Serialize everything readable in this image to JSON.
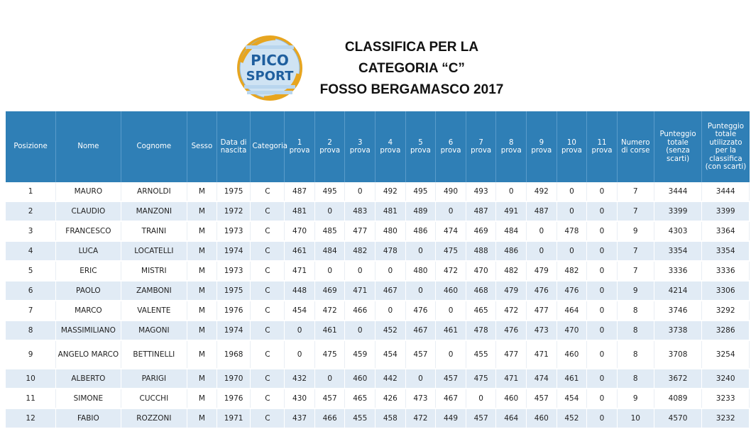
{
  "header": {
    "title_lines": [
      "CLASSIFICA PER LA",
      "CATEGORIA “C”",
      "FOSSO BERGAMASCO 2017"
    ],
    "logo_text": [
      "PICO",
      "SPORT"
    ]
  },
  "table": {
    "columns": [
      "Posizione",
      "Nome",
      "Cognome",
      "Sesso",
      "Data di nascita",
      "Categoria",
      "1 prova",
      "2 prova",
      "3 prova",
      "4 prova",
      "5 prova",
      "6 prova",
      "7 prova",
      "8 prova",
      "9 prova",
      "10 prova",
      "11 prova",
      "Numero di corse",
      "Punteggio totale (senza scarti)",
      "Punteggio totale utilizzato per la classifica (con scarti)"
    ],
    "rows": [
      [
        "1",
        "MAURO",
        "ARNOLDI",
        "M",
        "1975",
        "C",
        "487",
        "495",
        "0",
        "492",
        "495",
        "490",
        "493",
        "0",
        "492",
        "0",
        "0",
        "7",
        "3444",
        "3444"
      ],
      [
        "2",
        "CLAUDIO",
        "MANZONI",
        "M",
        "1972",
        "C",
        "481",
        "0",
        "483",
        "481",
        "489",
        "0",
        "487",
        "491",
        "487",
        "0",
        "0",
        "7",
        "3399",
        "3399"
      ],
      [
        "3",
        "FRANCESCO",
        "TRAINI",
        "M",
        "1973",
        "C",
        "470",
        "485",
        "477",
        "480",
        "486",
        "474",
        "469",
        "484",
        "0",
        "478",
        "0",
        "9",
        "4303",
        "3364"
      ],
      [
        "4",
        "LUCA",
        "LOCATELLI",
        "M",
        "1974",
        "C",
        "461",
        "484",
        "482",
        "478",
        "0",
        "475",
        "488",
        "486",
        "0",
        "0",
        "0",
        "7",
        "3354",
        "3354"
      ],
      [
        "5",
        "ERIC",
        "MISTRI",
        "M",
        "1973",
        "C",
        "471",
        "0",
        "0",
        "0",
        "480",
        "472",
        "470",
        "482",
        "479",
        "482",
        "0",
        "7",
        "3336",
        "3336"
      ],
      [
        "6",
        "PAOLO",
        "ZAMBONI",
        "M",
        "1975",
        "C",
        "448",
        "469",
        "471",
        "467",
        "0",
        "460",
        "468",
        "479",
        "476",
        "476",
        "0",
        "9",
        "4214",
        "3306"
      ],
      [
        "7",
        "MARCO",
        "VALENTE",
        "M",
        "1976",
        "C",
        "454",
        "472",
        "466",
        "0",
        "476",
        "0",
        "465",
        "472",
        "477",
        "464",
        "0",
        "8",
        "3746",
        "3292"
      ],
      [
        "8",
        "MASSIMILIANO",
        "MAGONI",
        "M",
        "1974",
        "C",
        "0",
        "461",
        "0",
        "452",
        "467",
        "461",
        "478",
        "476",
        "473",
        "470",
        "0",
        "8",
        "3738",
        "3286"
      ],
      [
        "9",
        "ANGELO MARCO",
        "BETTINELLI",
        "M",
        "1968",
        "C",
        "0",
        "475",
        "459",
        "454",
        "457",
        "0",
        "455",
        "477",
        "471",
        "460",
        "0",
        "8",
        "3708",
        "3254"
      ],
      [
        "10",
        "ALBERTO",
        "PARIGI",
        "M",
        "1970",
        "C",
        "432",
        "0",
        "460",
        "442",
        "0",
        "457",
        "475",
        "471",
        "474",
        "461",
        "0",
        "8",
        "3672",
        "3240"
      ],
      [
        "11",
        "SIMONE",
        "CUCCHI",
        "M",
        "1976",
        "C",
        "430",
        "457",
        "465",
        "426",
        "473",
        "467",
        "0",
        "460",
        "457",
        "454",
        "0",
        "9",
        "4089",
        "3233"
      ],
      [
        "12",
        "FABIO",
        "ROZZONI",
        "M",
        "1971",
        "C",
        "437",
        "466",
        "455",
        "458",
        "472",
        "449",
        "457",
        "464",
        "460",
        "452",
        "0",
        "10",
        "4570",
        "3232"
      ]
    ]
  },
  "colors": {
    "header_bg": "#2f7fb6",
    "row_alt_bg": "#e1ebf5",
    "logo_blue": "#1f5f9e",
    "logo_gold": "#e7a51f"
  }
}
